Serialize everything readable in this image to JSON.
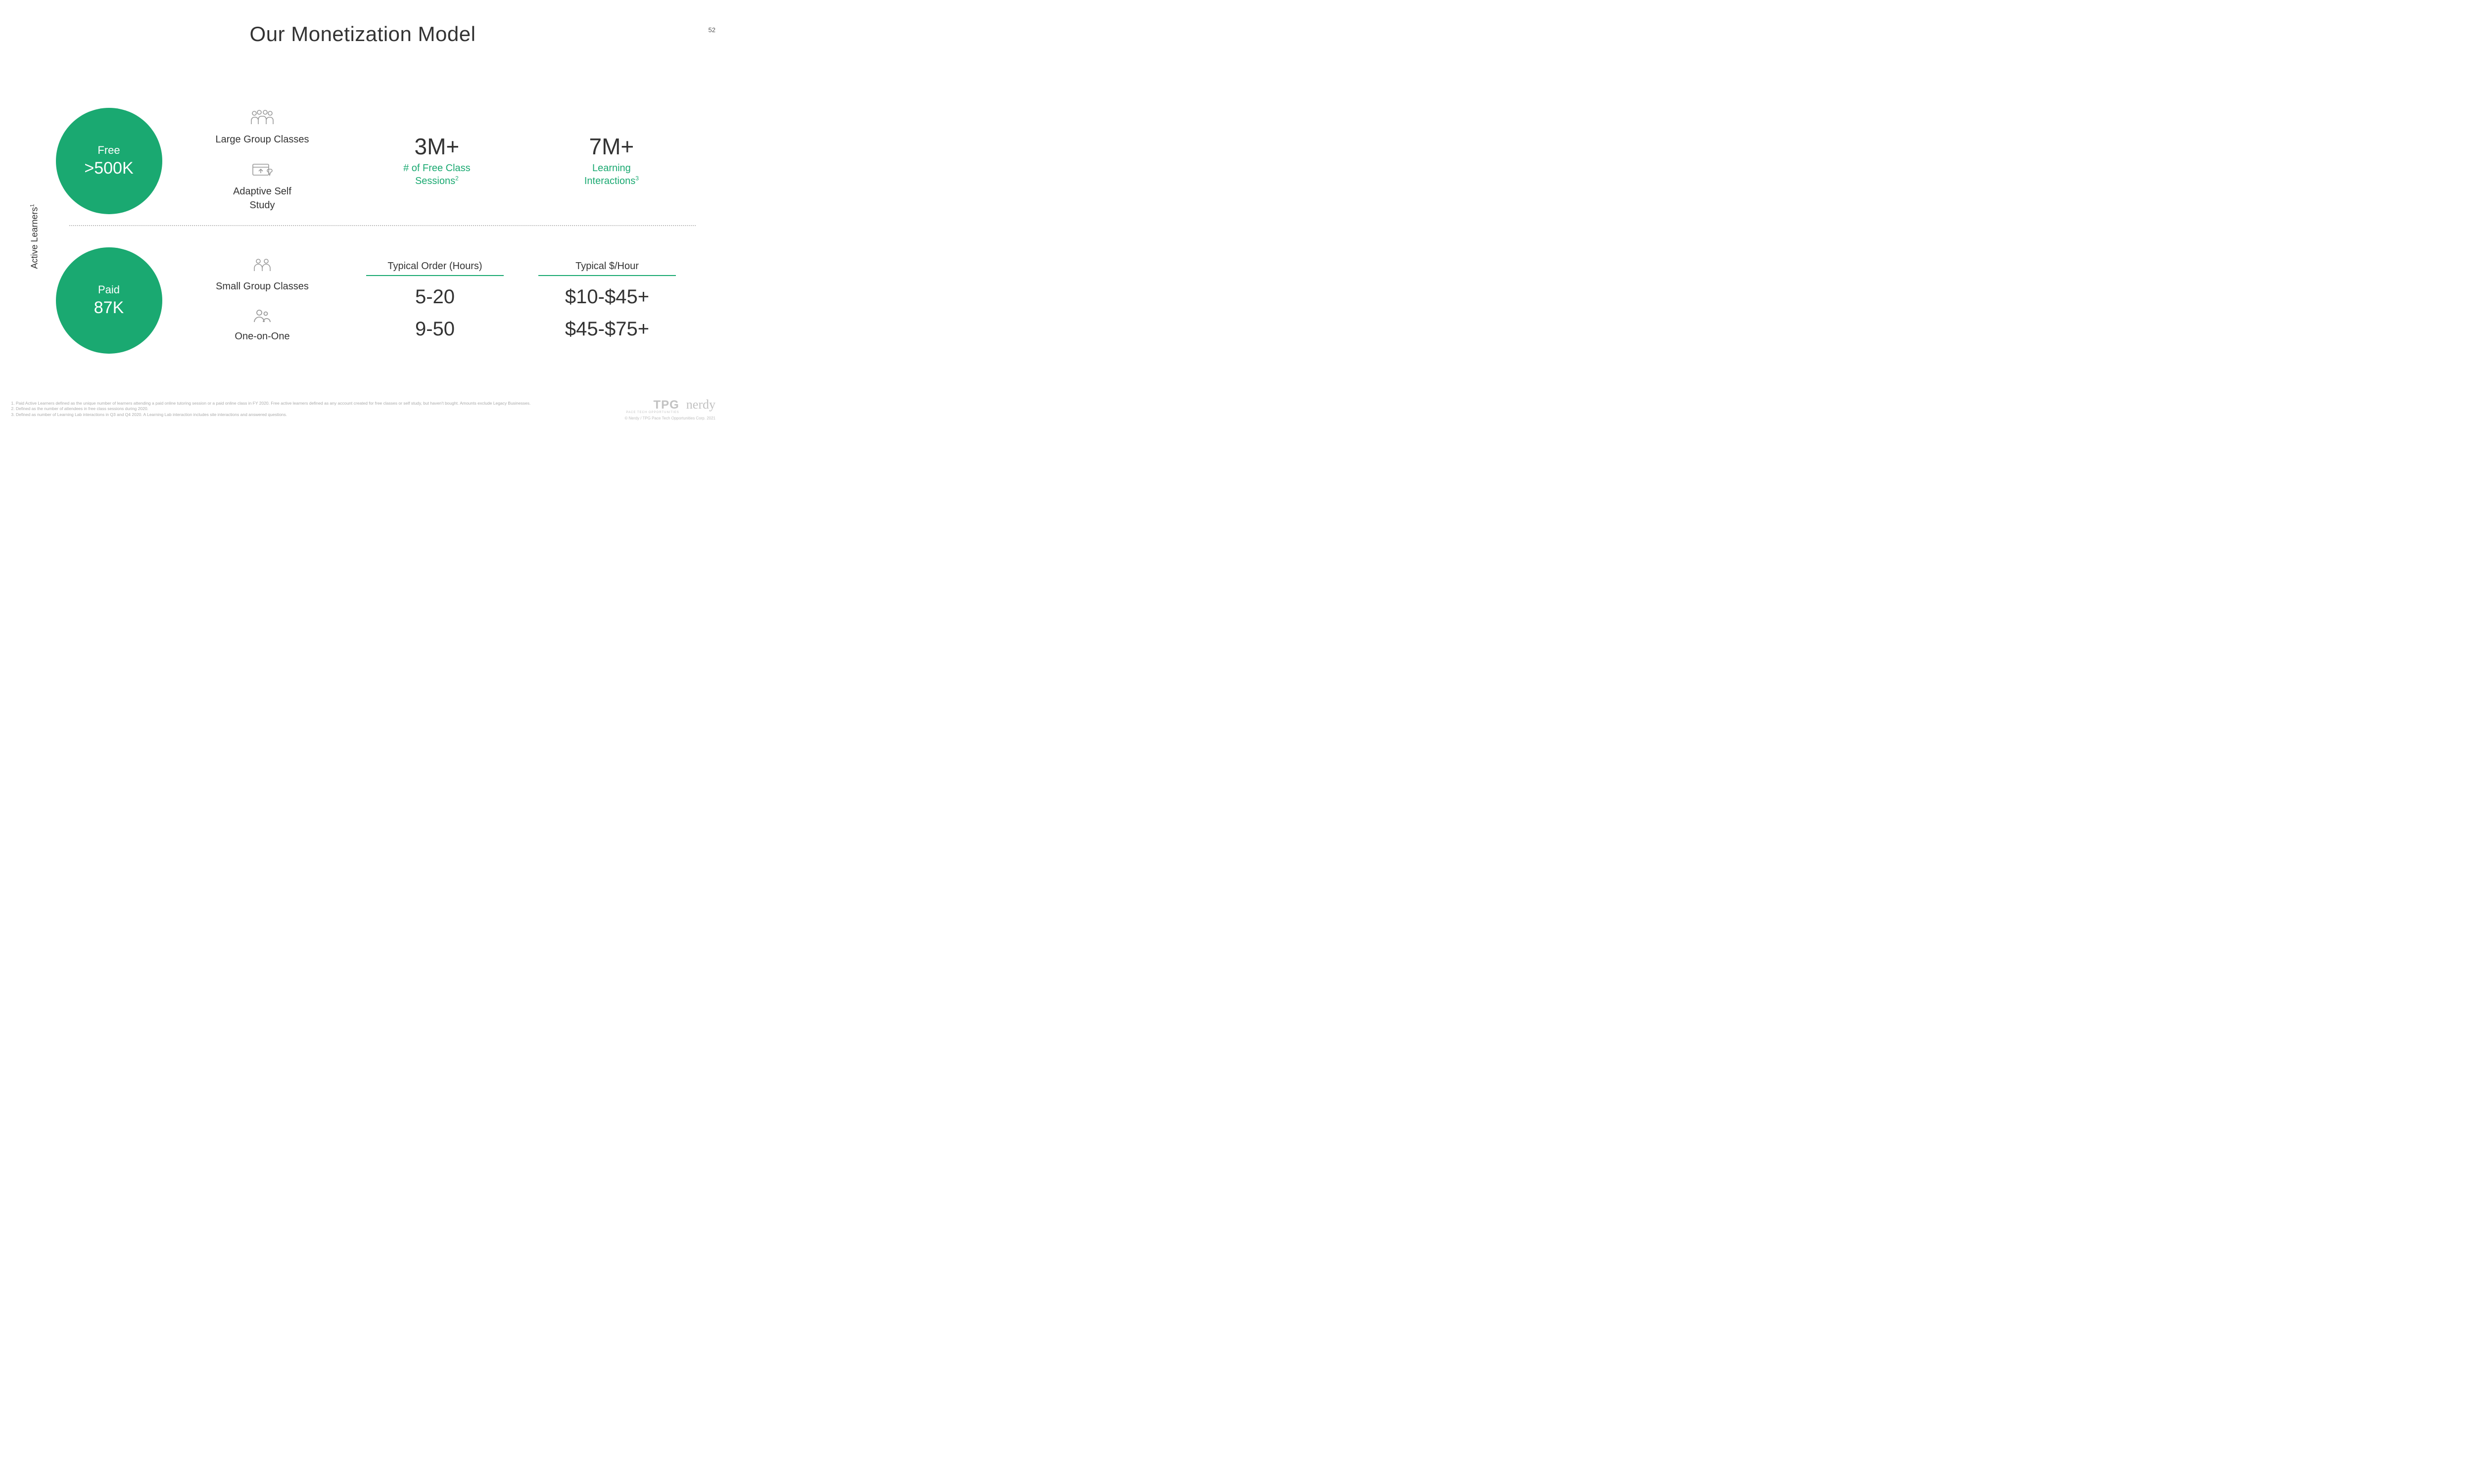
{
  "page_number": "52",
  "title": "Our Monetization Model",
  "y_axis_label_html": "Active Learners<sup>1</sup>",
  "colors": {
    "accent_green": "#1aa971",
    "circle_fill": "#1aa971",
    "text_dark": "#333333",
    "icon_gray": "#9a9a9a",
    "divider": "#bdbdbd",
    "footnote_gray": "#aaaaaa",
    "background": "#ffffff"
  },
  "free": {
    "circle_label": "Free",
    "circle_value": ">500K",
    "items": [
      {
        "label": "Large Group Classes",
        "icon": "large-group-icon"
      },
      {
        "label_html": "Adaptive Self<br>Study",
        "icon": "self-study-icon"
      }
    ],
    "stats": [
      {
        "value": "3M+",
        "sub_html": "# of Free Class<br>Sessions<sup>2</sup>"
      },
      {
        "value": "7M+",
        "sub_html": "Learning<br>Interactions<sup>3</sup>"
      }
    ]
  },
  "paid": {
    "circle_label": "Paid",
    "circle_value": "87K",
    "items": [
      {
        "label": "Small Group Classes",
        "icon": "small-group-icon"
      },
      {
        "label": "One-on-One",
        "icon": "one-on-one-icon"
      }
    ],
    "table": {
      "headers": [
        "Typical Order (Hours)",
        "Typical $/Hour"
      ],
      "rows": [
        [
          "5-20",
          "$10-$45+"
        ],
        [
          "9-50",
          "$45-$75+"
        ]
      ]
    }
  },
  "footnotes": [
    "Paid Active Learners defined as the unique number of learners attending a paid online tutoring session or a paid online class in FY 2020. Free active learners defined as any account created for free classes or self study, but haven't bought. Amounts exclude Legacy Businesses.",
    "Defined as the number of attendees in free class sessions during 2020.",
    "Defined as number of Learning Lab interactions in Q3 and Q4 2020. A Learning Lab interaction includes site interactions and answered questions."
  ],
  "footer": {
    "tpg": "TPG",
    "tpg_sub": "PACE  TECH OPPORTUNITIES",
    "nerdy": "nerdy",
    "copyright": "© Nerdy / TPG Pace Tech Opportunities Corp. 2021"
  }
}
